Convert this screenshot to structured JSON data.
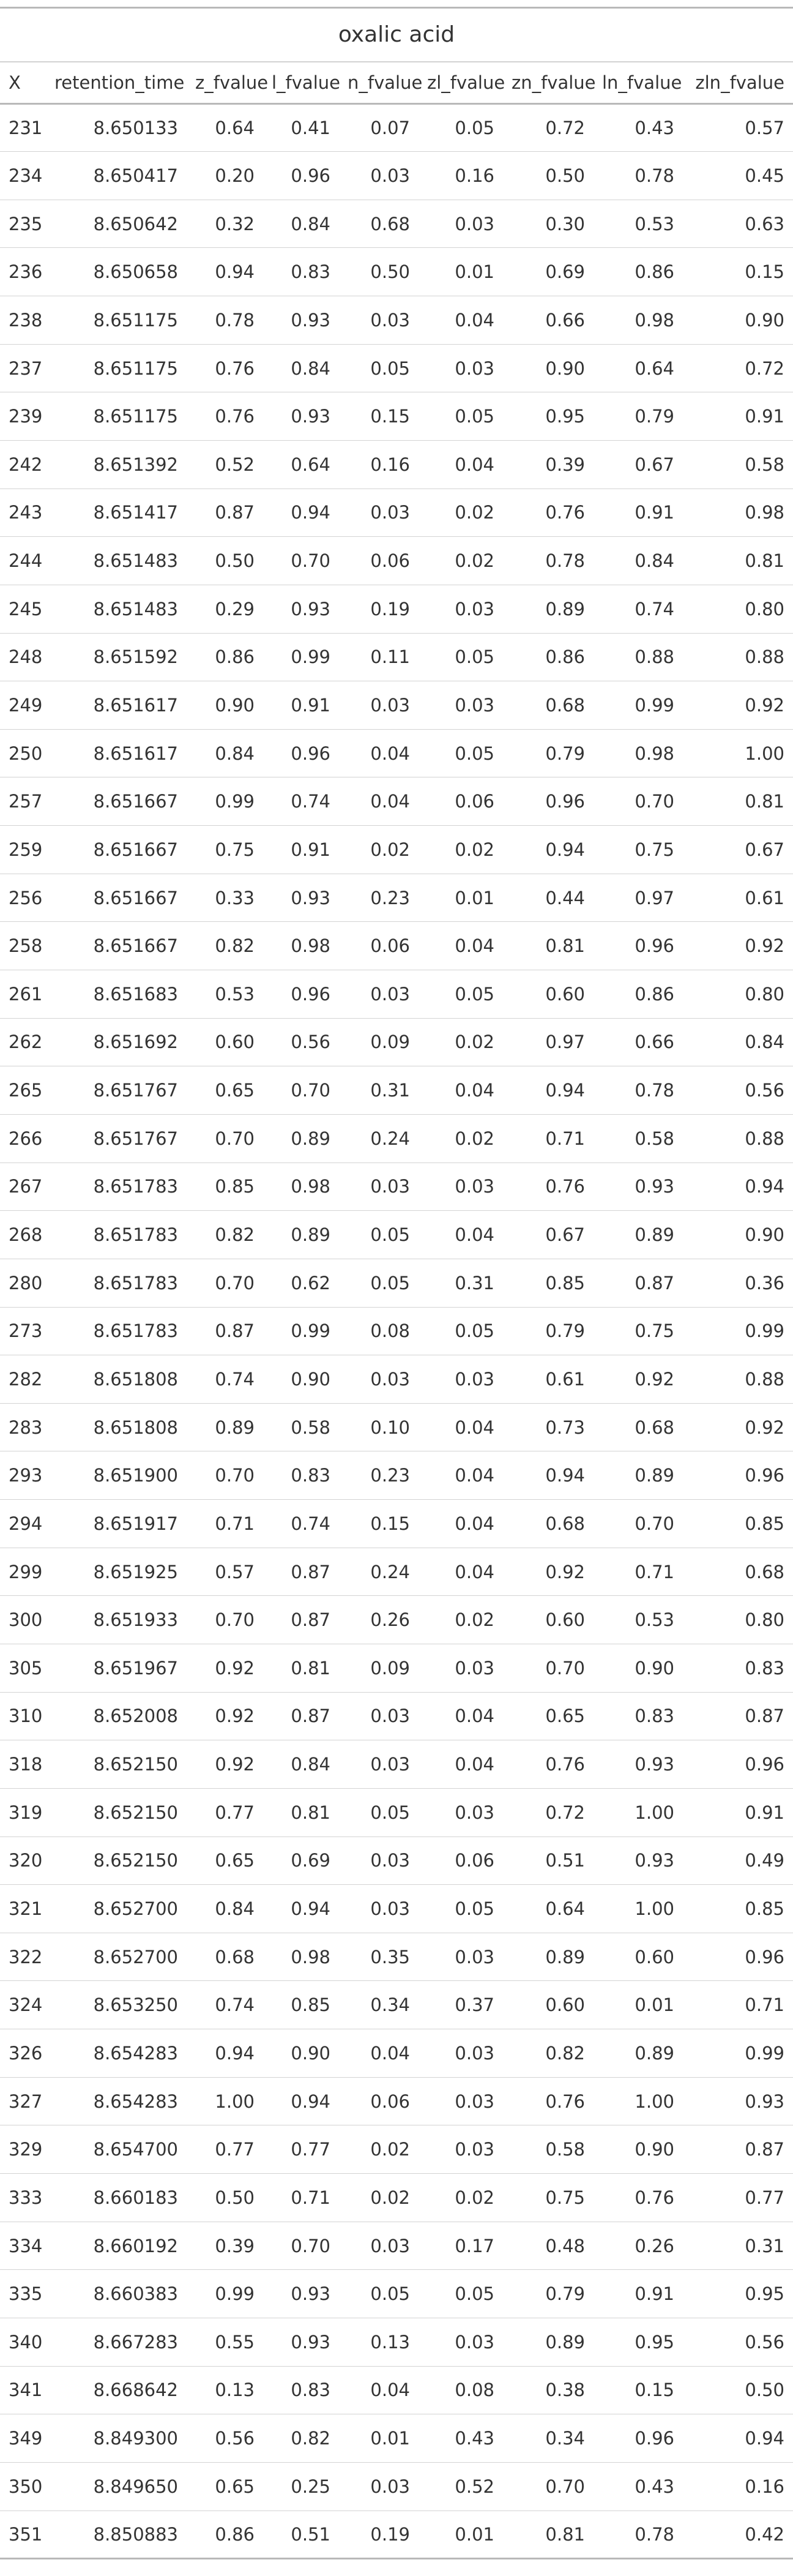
{
  "title": "oxalic acid",
  "columns": [
    "X",
    "retention_time",
    "z_fvalue",
    "l_fvalue",
    "n_fvalue",
    "zl_fvalue",
    "zn_fvalue",
    "ln_fvalue",
    "zln_fvalue"
  ],
  "rows": [
    [
      "231",
      "8.650133",
      "0.64",
      "0.41",
      "0.07",
      "0.05",
      "0.72",
      "0.43",
      "0.57"
    ],
    [
      "234",
      "8.650417",
      "0.20",
      "0.96",
      "0.03",
      "0.16",
      "0.50",
      "0.78",
      "0.45"
    ],
    [
      "235",
      "8.650642",
      "0.32",
      "0.84",
      "0.68",
      "0.03",
      "0.30",
      "0.53",
      "0.63"
    ],
    [
      "236",
      "8.650658",
      "0.94",
      "0.83",
      "0.50",
      "0.01",
      "0.69",
      "0.86",
      "0.15"
    ],
    [
      "238",
      "8.651175",
      "0.78",
      "0.93",
      "0.03",
      "0.04",
      "0.66",
      "0.98",
      "0.90"
    ],
    [
      "237",
      "8.651175",
      "0.76",
      "0.84",
      "0.05",
      "0.03",
      "0.90",
      "0.64",
      "0.72"
    ],
    [
      "239",
      "8.651175",
      "0.76",
      "0.93",
      "0.15",
      "0.05",
      "0.95",
      "0.79",
      "0.91"
    ],
    [
      "242",
      "8.651392",
      "0.52",
      "0.64",
      "0.16",
      "0.04",
      "0.39",
      "0.67",
      "0.58"
    ],
    [
      "243",
      "8.651417",
      "0.87",
      "0.94",
      "0.03",
      "0.02",
      "0.76",
      "0.91",
      "0.98"
    ],
    [
      "244",
      "8.651483",
      "0.50",
      "0.70",
      "0.06",
      "0.02",
      "0.78",
      "0.84",
      "0.81"
    ],
    [
      "245",
      "8.651483",
      "0.29",
      "0.93",
      "0.19",
      "0.03",
      "0.89",
      "0.74",
      "0.80"
    ],
    [
      "248",
      "8.651592",
      "0.86",
      "0.99",
      "0.11",
      "0.05",
      "0.86",
      "0.88",
      "0.88"
    ],
    [
      "249",
      "8.651617",
      "0.90",
      "0.91",
      "0.03",
      "0.03",
      "0.68",
      "0.99",
      "0.92"
    ],
    [
      "250",
      "8.651617",
      "0.84",
      "0.96",
      "0.04",
      "0.05",
      "0.79",
      "0.98",
      "1.00"
    ],
    [
      "257",
      "8.651667",
      "0.99",
      "0.74",
      "0.04",
      "0.06",
      "0.96",
      "0.70",
      "0.81"
    ],
    [
      "259",
      "8.651667",
      "0.75",
      "0.91",
      "0.02",
      "0.02",
      "0.94",
      "0.75",
      "0.67"
    ],
    [
      "256",
      "8.651667",
      "0.33",
      "0.93",
      "0.23",
      "0.01",
      "0.44",
      "0.97",
      "0.61"
    ],
    [
      "258",
      "8.651667",
      "0.82",
      "0.98",
      "0.06",
      "0.04",
      "0.81",
      "0.96",
      "0.92"
    ],
    [
      "261",
      "8.651683",
      "0.53",
      "0.96",
      "0.03",
      "0.05",
      "0.60",
      "0.86",
      "0.80"
    ],
    [
      "262",
      "8.651692",
      "0.60",
      "0.56",
      "0.09",
      "0.02",
      "0.97",
      "0.66",
      "0.84"
    ],
    [
      "265",
      "8.651767",
      "0.65",
      "0.70",
      "0.31",
      "0.04",
      "0.94",
      "0.78",
      "0.56"
    ],
    [
      "266",
      "8.651767",
      "0.70",
      "0.89",
      "0.24",
      "0.02",
      "0.71",
      "0.58",
      "0.88"
    ],
    [
      "267",
      "8.651783",
      "0.85",
      "0.98",
      "0.03",
      "0.03",
      "0.76",
      "0.93",
      "0.94"
    ],
    [
      "268",
      "8.651783",
      "0.82",
      "0.89",
      "0.05",
      "0.04",
      "0.67",
      "0.89",
      "0.90"
    ],
    [
      "280",
      "8.651783",
      "0.70",
      "0.62",
      "0.05",
      "0.31",
      "0.85",
      "0.87",
      "0.36"
    ],
    [
      "273",
      "8.651783",
      "0.87",
      "0.99",
      "0.08",
      "0.05",
      "0.79",
      "0.75",
      "0.99"
    ],
    [
      "282",
      "8.651808",
      "0.74",
      "0.90",
      "0.03",
      "0.03",
      "0.61",
      "0.92",
      "0.88"
    ],
    [
      "283",
      "8.651808",
      "0.89",
      "0.58",
      "0.10",
      "0.04",
      "0.73",
      "0.68",
      "0.92"
    ],
    [
      "293",
      "8.651900",
      "0.70",
      "0.83",
      "0.23",
      "0.04",
      "0.94",
      "0.89",
      "0.96"
    ],
    [
      "294",
      "8.651917",
      "0.71",
      "0.74",
      "0.15",
      "0.04",
      "0.68",
      "0.70",
      "0.85"
    ],
    [
      "299",
      "8.651925",
      "0.57",
      "0.87",
      "0.24",
      "0.04",
      "0.92",
      "0.71",
      "0.68"
    ],
    [
      "300",
      "8.651933",
      "0.70",
      "0.87",
      "0.26",
      "0.02",
      "0.60",
      "0.53",
      "0.80"
    ],
    [
      "305",
      "8.651967",
      "0.92",
      "0.81",
      "0.09",
      "0.03",
      "0.70",
      "0.90",
      "0.83"
    ],
    [
      "310",
      "8.652008",
      "0.92",
      "0.87",
      "0.03",
      "0.04",
      "0.65",
      "0.83",
      "0.87"
    ],
    [
      "318",
      "8.652150",
      "0.92",
      "0.84",
      "0.03",
      "0.04",
      "0.76",
      "0.93",
      "0.96"
    ],
    [
      "319",
      "8.652150",
      "0.77",
      "0.81",
      "0.05",
      "0.03",
      "0.72",
      "1.00",
      "0.91"
    ],
    [
      "320",
      "8.652150",
      "0.65",
      "0.69",
      "0.03",
      "0.06",
      "0.51",
      "0.93",
      "0.49"
    ],
    [
      "321",
      "8.652700",
      "0.84",
      "0.94",
      "0.03",
      "0.05",
      "0.64",
      "1.00",
      "0.85"
    ],
    [
      "322",
      "8.652700",
      "0.68",
      "0.98",
      "0.35",
      "0.03",
      "0.89",
      "0.60",
      "0.96"
    ],
    [
      "324",
      "8.653250",
      "0.74",
      "0.85",
      "0.34",
      "0.37",
      "0.60",
      "0.01",
      "0.71"
    ],
    [
      "326",
      "8.654283",
      "0.94",
      "0.90",
      "0.04",
      "0.03",
      "0.82",
      "0.89",
      "0.99"
    ],
    [
      "327",
      "8.654283",
      "1.00",
      "0.94",
      "0.06",
      "0.03",
      "0.76",
      "1.00",
      "0.93"
    ],
    [
      "329",
      "8.654700",
      "0.77",
      "0.77",
      "0.02",
      "0.03",
      "0.58",
      "0.90",
      "0.87"
    ],
    [
      "333",
      "8.660183",
      "0.50",
      "0.71",
      "0.02",
      "0.02",
      "0.75",
      "0.76",
      "0.77"
    ],
    [
      "334",
      "8.660192",
      "0.39",
      "0.70",
      "0.03",
      "0.17",
      "0.48",
      "0.26",
      "0.31"
    ],
    [
      "335",
      "8.660383",
      "0.99",
      "0.93",
      "0.05",
      "0.05",
      "0.79",
      "0.91",
      "0.95"
    ],
    [
      "340",
      "8.667283",
      "0.55",
      "0.93",
      "0.13",
      "0.03",
      "0.89",
      "0.95",
      "0.56"
    ],
    [
      "341",
      "8.668642",
      "0.13",
      "0.83",
      "0.04",
      "0.08",
      "0.38",
      "0.15",
      "0.50"
    ],
    [
      "349",
      "8.849300",
      "0.56",
      "0.82",
      "0.01",
      "0.43",
      "0.34",
      "0.96",
      "0.94"
    ],
    [
      "350",
      "8.849650",
      "0.65",
      "0.25",
      "0.03",
      "0.52",
      "0.70",
      "0.43",
      "0.16"
    ],
    [
      "351",
      "8.850883",
      "0.86",
      "0.51",
      "0.19",
      "0.01",
      "0.81",
      "0.78",
      "0.42"
    ]
  ]
}
